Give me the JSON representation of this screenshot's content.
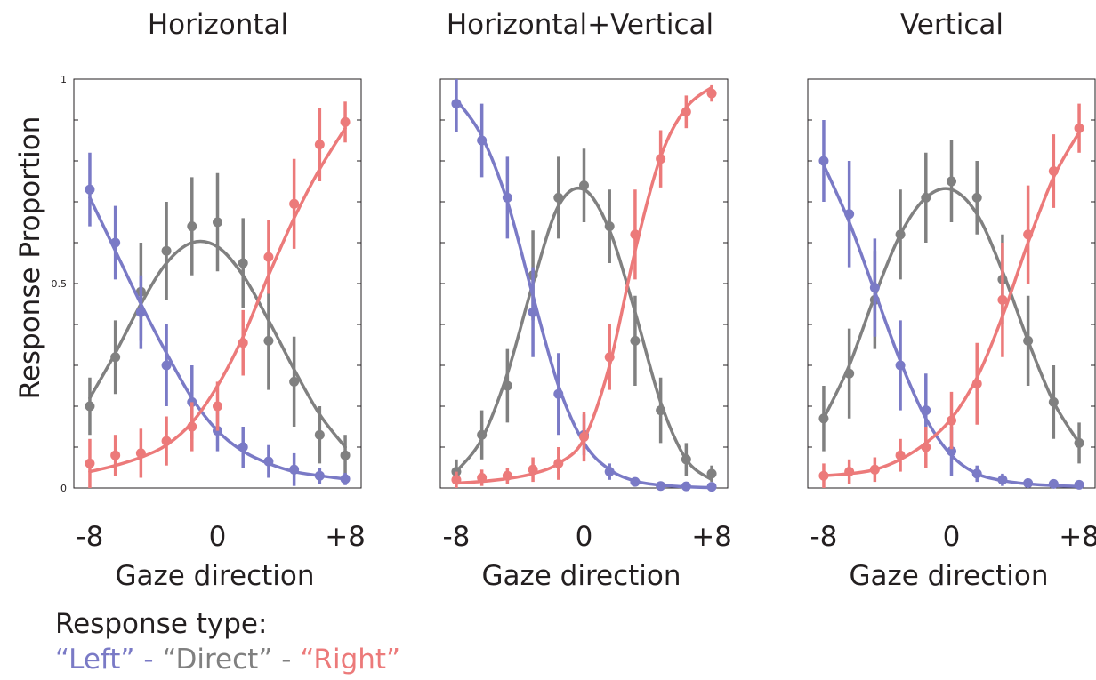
{
  "colors": {
    "left": "#7a7ac6",
    "direct": "#808080",
    "right": "#ec7a7a",
    "text": "#231f20",
    "axis": "#231f20"
  },
  "ylabel": "Response Proportion",
  "legend": {
    "title": "Response type:",
    "left": "“Left”",
    "sep1": " - ",
    "direct": "“Direct”",
    "sep2": " - ",
    "right": "“Right”"
  },
  "chart_data": [
    {
      "type": "line",
      "title": "Horizontal",
      "xlabel": "Gaze direction",
      "ylabel": "Response Proportion",
      "xlim": [
        -9,
        9
      ],
      "ylim": [
        0,
        1
      ],
      "x_ticks": [
        -8,
        0,
        8
      ],
      "x_tick_labels": [
        "-8",
        "0",
        "+8"
      ],
      "y_ticks": [
        0,
        0.5,
        1
      ],
      "y_tick_labels": [
        "0",
        "0.5",
        "1"
      ],
      "x": [
        -8,
        -6.4,
        -4.8,
        -3.2,
        -1.6,
        0,
        1.6,
        3.2,
        4.8,
        6.4,
        8
      ],
      "series": [
        {
          "name": "Left",
          "color": "#7a7ac6",
          "values": [
            0.73,
            0.6,
            0.43,
            0.3,
            0.21,
            0.14,
            0.1,
            0.065,
            0.045,
            0.03,
            0.022
          ],
          "errors": [
            0.09,
            0.09,
            0.09,
            0.1,
            0.09,
            0.05,
            0.05,
            0.04,
            0.04,
            0.02,
            0.015
          ],
          "fit": [
            0.71,
            0.58,
            0.45,
            0.33,
            0.22,
            0.14,
            0.09,
            0.06,
            0.04,
            0.03,
            0.022
          ]
        },
        {
          "name": "Direct",
          "color": "#808080",
          "values": [
            0.2,
            0.32,
            0.48,
            0.58,
            0.64,
            0.65,
            0.55,
            0.36,
            0.26,
            0.13,
            0.08
          ],
          "errors": [
            0.07,
            0.09,
            0.12,
            0.12,
            0.12,
            0.12,
            0.11,
            0.12,
            0.11,
            0.07,
            0.05
          ],
          "fit": [
            0.22,
            0.33,
            0.45,
            0.55,
            0.6,
            0.59,
            0.52,
            0.41,
            0.29,
            0.18,
            0.1
          ]
        },
        {
          "name": "Right",
          "color": "#ec7a7a",
          "values": [
            0.06,
            0.08,
            0.085,
            0.115,
            0.15,
            0.2,
            0.355,
            0.565,
            0.695,
            0.84,
            0.895
          ],
          "errors": [
            0.06,
            0.05,
            0.06,
            0.06,
            0.06,
            0.06,
            0.08,
            0.09,
            0.11,
            0.09,
            0.05
          ],
          "fit": [
            0.04,
            0.055,
            0.075,
            0.105,
            0.16,
            0.25,
            0.37,
            0.52,
            0.66,
            0.78,
            0.88
          ]
        }
      ]
    },
    {
      "type": "line",
      "title": "Horizontal+Vertical",
      "xlabel": "Gaze direction",
      "ylabel": "",
      "xlim": [
        -9,
        9
      ],
      "ylim": [
        0,
        1
      ],
      "x_ticks": [
        -8,
        0,
        8
      ],
      "x_tick_labels": [
        "-8",
        "0",
        "+8"
      ],
      "y_ticks": [
        0,
        0.5,
        1
      ],
      "y_tick_labels": [
        "",
        "",
        ""
      ],
      "x": [
        -8,
        -6.4,
        -4.8,
        -3.2,
        -1.6,
        0,
        1.6,
        3.2,
        4.8,
        6.4,
        8
      ],
      "series": [
        {
          "name": "Left",
          "color": "#7a7ac6",
          "values": [
            0.94,
            0.85,
            0.71,
            0.43,
            0.23,
            0.13,
            0.04,
            0.015,
            0.005,
            0.004,
            0.003
          ],
          "errors": [
            0.07,
            0.09,
            0.1,
            0.11,
            0.1,
            0.05,
            0.02,
            0.01,
            0.005,
            0.004,
            0.003
          ],
          "fit": [
            0.95,
            0.86,
            0.7,
            0.47,
            0.25,
            0.11,
            0.045,
            0.017,
            0.007,
            0.003,
            0.001
          ]
        },
        {
          "name": "Direct",
          "color": "#808080",
          "values": [
            0.04,
            0.13,
            0.25,
            0.52,
            0.71,
            0.74,
            0.64,
            0.36,
            0.19,
            0.07,
            0.035
          ],
          "errors": [
            0.03,
            0.06,
            0.09,
            0.11,
            0.1,
            0.09,
            0.09,
            0.11,
            0.08,
            0.04,
            0.02
          ],
          "fit": [
            0.04,
            0.12,
            0.28,
            0.5,
            0.69,
            0.73,
            0.63,
            0.43,
            0.21,
            0.07,
            0.02
          ]
        },
        {
          "name": "Right",
          "color": "#ec7a7a",
          "values": [
            0.02,
            0.025,
            0.03,
            0.045,
            0.06,
            0.125,
            0.32,
            0.62,
            0.805,
            0.92,
            0.965
          ],
          "errors": [
            0.02,
            0.02,
            0.02,
            0.03,
            0.04,
            0.06,
            0.08,
            0.11,
            0.07,
            0.04,
            0.02
          ],
          "fit": [
            0.012,
            0.016,
            0.023,
            0.035,
            0.06,
            0.12,
            0.3,
            0.58,
            0.81,
            0.93,
            0.98
          ]
        }
      ]
    },
    {
      "type": "line",
      "title": "Vertical",
      "xlabel": "Gaze direction",
      "ylabel": "",
      "xlim": [
        -9,
        9
      ],
      "ylim": [
        0,
        1
      ],
      "x_ticks": [
        -8,
        0,
        8
      ],
      "x_tick_labels": [
        "-8",
        "0",
        "+8"
      ],
      "y_ticks": [
        0,
        0.5,
        1
      ],
      "y_tick_labels": [
        "",
        "",
        ""
      ],
      "x": [
        -8,
        -6.4,
        -4.8,
        -3.2,
        -1.6,
        0,
        1.6,
        3.2,
        4.8,
        6.4,
        8
      ],
      "series": [
        {
          "name": "Left",
          "color": "#7a7ac6",
          "values": [
            0.8,
            0.67,
            0.49,
            0.3,
            0.19,
            0.09,
            0.035,
            0.02,
            0.012,
            0.01,
            0.008
          ],
          "errors": [
            0.1,
            0.13,
            0.12,
            0.11,
            0.09,
            0.06,
            0.02,
            0.015,
            0.01,
            0.008,
            0.006
          ],
          "fit": [
            0.79,
            0.65,
            0.48,
            0.31,
            0.17,
            0.08,
            0.035,
            0.018,
            0.01,
            0.006,
            0.004
          ]
        },
        {
          "name": "Direct",
          "color": "#808080",
          "values": [
            0.17,
            0.28,
            0.46,
            0.62,
            0.71,
            0.75,
            0.71,
            0.51,
            0.36,
            0.21,
            0.11
          ],
          "errors": [
            0.08,
            0.11,
            0.12,
            0.11,
            0.11,
            0.1,
            0.09,
            0.11,
            0.11,
            0.09,
            0.05
          ],
          "fit": [
            0.17,
            0.3,
            0.47,
            0.62,
            0.71,
            0.73,
            0.67,
            0.53,
            0.36,
            0.21,
            0.11
          ]
        },
        {
          "name": "Right",
          "color": "#ec7a7a",
          "values": [
            0.03,
            0.04,
            0.045,
            0.08,
            0.1,
            0.165,
            0.255,
            0.46,
            0.62,
            0.775,
            0.88
          ],
          "errors": [
            0.03,
            0.03,
            0.03,
            0.04,
            0.05,
            0.07,
            0.1,
            0.14,
            0.12,
            0.09,
            0.06
          ],
          "fit": [
            0.03,
            0.035,
            0.045,
            0.07,
            0.11,
            0.17,
            0.27,
            0.42,
            0.6,
            0.76,
            0.87
          ]
        }
      ]
    }
  ]
}
